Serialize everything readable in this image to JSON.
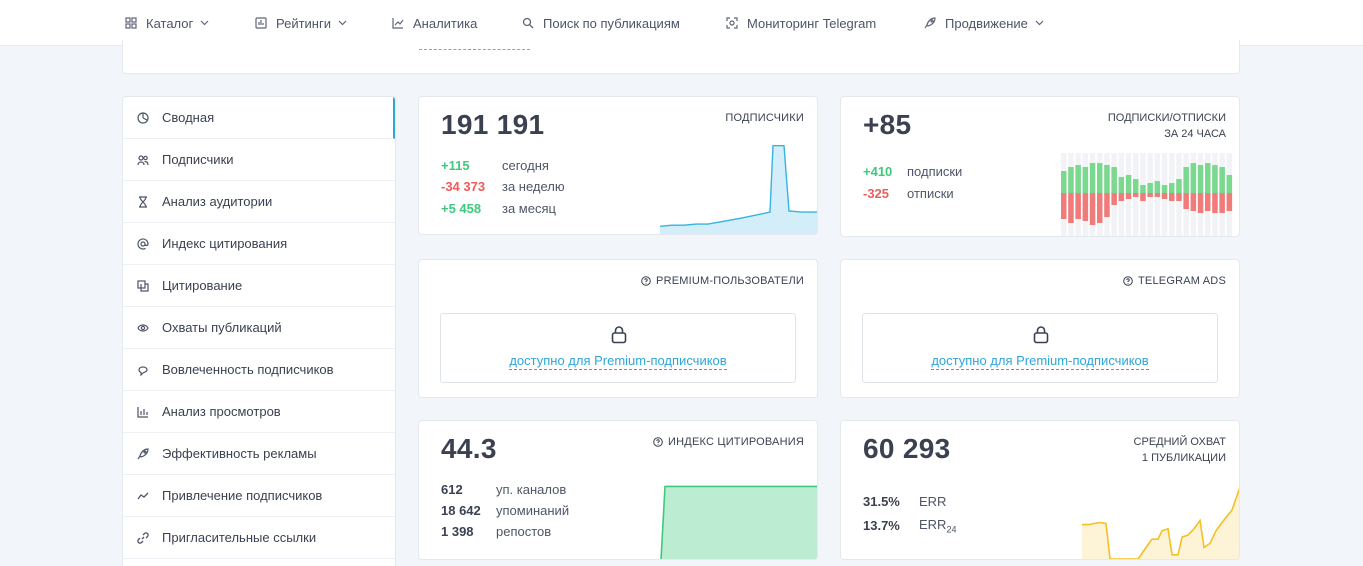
{
  "nav": {
    "items": [
      {
        "label": "Каталог",
        "icon": "grid-icon",
        "dropdown": true
      },
      {
        "label": "Рейтинги",
        "icon": "ranking-icon",
        "dropdown": true
      },
      {
        "label": "Аналитика",
        "icon": "analytics-icon",
        "dropdown": false
      },
      {
        "label": "Поиск по публикациям",
        "icon": "search-icon",
        "dropdown": false
      },
      {
        "label": "Мониторинг Telegram",
        "icon": "monitor-icon",
        "dropdown": false
      },
      {
        "label": "Продвижение",
        "icon": "rocket-icon",
        "dropdown": true
      }
    ]
  },
  "sidebar": {
    "items": [
      {
        "label": "Сводная",
        "icon": "summary-icon",
        "active": true
      },
      {
        "label": "Подписчики",
        "icon": "users-icon"
      },
      {
        "label": "Анализ аудитории",
        "icon": "hourglass-icon"
      },
      {
        "label": "Индекс цитирования",
        "icon": "at-icon"
      },
      {
        "label": "Цитирование",
        "icon": "quote-icon"
      },
      {
        "label": "Охваты публикаций",
        "icon": "eye-icon"
      },
      {
        "label": "Вовлеченность подписчиков",
        "icon": "engagement-icon"
      },
      {
        "label": "Анализ просмотров",
        "icon": "bar-chart-icon"
      },
      {
        "label": "Эффективность рекламы",
        "icon": "rocket-icon"
      },
      {
        "label": "Привлечение подписчиков",
        "icon": "trend-icon"
      },
      {
        "label": "Пригласительные ссылки",
        "icon": "link-icon"
      }
    ]
  },
  "subscribers": {
    "value": "191 191",
    "title": "ПОДПИСЧИКИ",
    "stats": [
      {
        "value": "+115",
        "label": "сегодня",
        "tone": "pos"
      },
      {
        "value": "-34 373",
        "label": "за неделю",
        "tone": "neg"
      },
      {
        "value": "+5 458",
        "label": "за месяц",
        "tone": "pos"
      }
    ],
    "color": "#36b3e0"
  },
  "subs_unsubs": {
    "value": "+85",
    "title_line1": "ПОДПИСКИ/ОТПИСКИ",
    "title_line2": "ЗА 24 ЧАСА",
    "stats": [
      {
        "value": "+410",
        "label": "подписки",
        "tone": "pos"
      },
      {
        "value": "-325",
        "label": "отписки",
        "tone": "neg"
      }
    ],
    "colors": {
      "up": "#7bd88f",
      "down": "#f07b7b"
    }
  },
  "premium_users": {
    "title": "PREMIUM-ПОЛЬЗОВАТЕЛИ",
    "link": "доступно для Premium-подписчиков"
  },
  "telegram_ads": {
    "title": "TELEGRAM ADS",
    "link": "доступно для Premium-подписчиков"
  },
  "citation": {
    "value": "44.3",
    "title": "ИНДЕКС ЦИТИРОВАНИЯ",
    "stats": [
      {
        "value": "612",
        "label": "уп. каналов"
      },
      {
        "value": "18 642",
        "label": "упоминаний"
      },
      {
        "value": "1 398",
        "label": "репостов"
      }
    ],
    "color": "#3ec97d"
  },
  "reach": {
    "value": "60 293",
    "title_line1": "СРЕДНИЙ ОХВАТ",
    "title_line2": "1 ПУБЛИКАЦИИ",
    "stats": [
      {
        "value": "31.5%",
        "label": "ERR",
        "sub": ""
      },
      {
        "value": "13.7%",
        "label": "ERR",
        "sub": "24"
      }
    ],
    "color": "#f5c022"
  },
  "chart_data": [
    {
      "type": "area",
      "name": "Подписчики",
      "y": [
        8,
        9,
        9,
        10,
        10,
        12,
        14,
        16,
        21,
        82,
        82,
        22,
        21,
        21
      ],
      "ylim": [
        0,
        90
      ]
    },
    {
      "type": "bar",
      "name": "Подписки/Отписки",
      "series": [
        {
          "name": "подписки",
          "values": [
            22,
            26,
            28,
            26,
            30,
            30,
            28,
            26,
            16,
            18,
            14,
            8,
            10,
            12,
            8,
            10,
            14,
            26,
            30,
            28,
            30,
            28,
            26,
            18
          ]
        },
        {
          "name": "отписки",
          "values": [
            26,
            30,
            26,
            28,
            32,
            30,
            24,
            12,
            8,
            6,
            4,
            8,
            4,
            4,
            6,
            8,
            8,
            16,
            18,
            20,
            18,
            20,
            20,
            18
          ]
        }
      ]
    },
    {
      "type": "area",
      "name": "Индекс цитирования",
      "y": [
        0,
        0,
        100,
        100,
        100,
        100,
        100
      ],
      "ylim": [
        0,
        110
      ]
    },
    {
      "type": "line",
      "name": "Средний охват",
      "y": [
        34,
        34,
        35,
        36,
        35,
        1,
        1,
        1,
        1,
        1,
        1,
        12,
        20,
        20,
        28,
        30,
        5,
        5,
        22,
        24,
        30,
        38,
        12,
        16,
        28,
        36,
        48,
        70
      ],
      "ylim": [
        0,
        72
      ]
    }
  ]
}
